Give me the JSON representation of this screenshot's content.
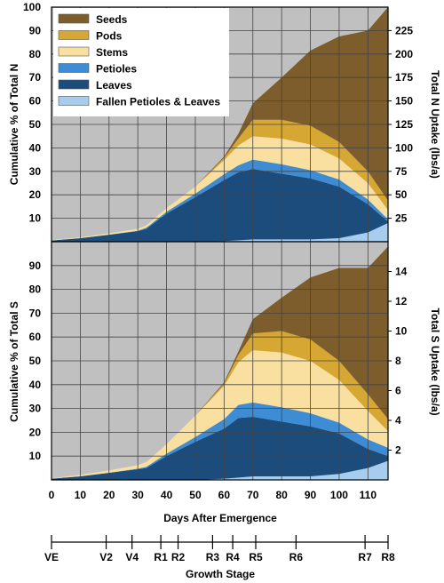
{
  "chart_data": [
    {
      "type": "area",
      "stacked": true,
      "legend_position": "top-left",
      "grid": true,
      "xlabel": "Days After Emergence",
      "ylabel": "Cumulative % of Total N",
      "y2label": "Total N Uptake (lbs/a)",
      "xlim": [
        0,
        117
      ],
      "ylim": [
        0,
        100
      ],
      "y2lim": [
        0,
        250
      ],
      "xticks": [
        0,
        10,
        20,
        30,
        40,
        50,
        60,
        70,
        80,
        90,
        100,
        110
      ],
      "yticks": [
        10,
        20,
        30,
        40,
        50,
        60,
        70,
        80,
        90,
        100
      ],
      "y2ticks": [
        25,
        50,
        75,
        100,
        125,
        150,
        175,
        200,
        225
      ],
      "x": [
        0,
        10,
        20,
        30,
        33,
        40,
        50,
        60,
        65,
        70,
        80,
        90,
        100,
        110,
        117
      ],
      "series": [
        {
          "name": "Fallen Petioles & Leaves",
          "color": "#a6cdee",
          "values": [
            0,
            0,
            0,
            0,
            0,
            0,
            0,
            0.3,
            0.6,
            1,
            1,
            1,
            1.5,
            4,
            8
          ]
        },
        {
          "name": "Leaves",
          "color": "#1b4c7c",
          "values": [
            0.5,
            1.5,
            3,
            4.5,
            5.5,
            12,
            19,
            26,
            29,
            30,
            28,
            26,
            22,
            12,
            0.5
          ]
        },
        {
          "name": "Petioles",
          "color": "#3d8cd4",
          "values": [
            0,
            0,
            0,
            0.2,
            0.5,
            0.8,
            1.5,
            2.5,
            3,
            4,
            4,
            3.5,
            3,
            2,
            1
          ]
        },
        {
          "name": "Stems",
          "color": "#f9e0a0",
          "values": [
            0.2,
            0.4,
            0.6,
            0.8,
            1,
            1.5,
            3,
            6,
            8.5,
            10,
            11,
            11,
            9,
            7,
            4
          ]
        },
        {
          "name": "Pods",
          "color": "#d6a732",
          "values": [
            0,
            0,
            0,
            0,
            0,
            0,
            0,
            1,
            3,
            7,
            8,
            8,
            7,
            5,
            4
          ]
        },
        {
          "name": "Seeds",
          "color": "#7d5d2b",
          "values": [
            0,
            0,
            0,
            0,
            0,
            0,
            0,
            0.5,
            2,
            7,
            18,
            32,
            45,
            60,
            82.5
          ]
        }
      ]
    },
    {
      "type": "area",
      "stacked": true,
      "grid": true,
      "xlabel": "Days After Emergence",
      "ylabel": "Cumulative % of Total S",
      "y2label": "Total S Uptake (lbs/a)",
      "xlim": [
        0,
        117
      ],
      "ylim": [
        0,
        100
      ],
      "y2lim": [
        0,
        16
      ],
      "xticks": [
        0,
        10,
        20,
        30,
        40,
        50,
        60,
        70,
        80,
        90,
        100,
        110
      ],
      "yticks": [
        10,
        20,
        30,
        40,
        50,
        60,
        70,
        80,
        90
      ],
      "y2ticks": [
        2,
        4,
        6,
        8,
        10,
        12,
        14
      ],
      "x": [
        0,
        10,
        20,
        30,
        33,
        40,
        50,
        60,
        65,
        70,
        80,
        90,
        100,
        110,
        117
      ],
      "series": [
        {
          "name": "Fallen Petioles & Leaves",
          "color": "#a6cdee",
          "values": [
            0,
            0,
            0,
            0,
            0,
            0,
            0,
            0.5,
            1,
            1.5,
            1.5,
            1.5,
            2.5,
            5,
            8
          ]
        },
        {
          "name": "Leaves",
          "color": "#1b4c7c",
          "values": [
            0.5,
            1.5,
            3,
            4.5,
            5,
            10,
            16,
            21,
            25,
            25,
            23,
            21,
            17,
            8,
            2
          ]
        },
        {
          "name": "Petioles",
          "color": "#3d8cd4",
          "values": [
            0,
            0,
            0,
            0.2,
            0.5,
            1,
            2,
            4,
            5.5,
            6,
            6,
            5.5,
            4.5,
            4,
            3.5
          ]
        },
        {
          "name": "Stems",
          "color": "#f9e0a0",
          "values": [
            0.2,
            0.6,
            1,
            1.5,
            2,
            4,
            9,
            14,
            18,
            22,
            23,
            22,
            18,
            12,
            7
          ]
        },
        {
          "name": "Pods",
          "color": "#d6a732",
          "values": [
            0,
            0,
            0,
            0,
            0,
            0,
            0,
            1,
            3,
            7,
            9,
            9,
            8,
            7,
            5
          ]
        },
        {
          "name": "Seeds",
          "color": "#7d5d2b",
          "values": [
            0,
            0,
            0,
            0,
            0,
            0,
            0,
            0.5,
            1.5,
            6,
            14,
            26,
            39,
            53,
            72.5
          ]
        }
      ]
    }
  ],
  "growth_stage": {
    "label": "Growth Stage",
    "stages": [
      {
        "label": "VE",
        "day": 0
      },
      {
        "label": "V2",
        "day": 19
      },
      {
        "label": "V4",
        "day": 28
      },
      {
        "label": "R1",
        "day": 38
      },
      {
        "label": "R2",
        "day": 44
      },
      {
        "label": "R3",
        "day": 56
      },
      {
        "label": "R4",
        "day": 63
      },
      {
        "label": "R5",
        "day": 71
      },
      {
        "label": "R6",
        "day": 85
      },
      {
        "label": "R7",
        "day": 109
      },
      {
        "label": "R8",
        "day": 117
      }
    ]
  }
}
